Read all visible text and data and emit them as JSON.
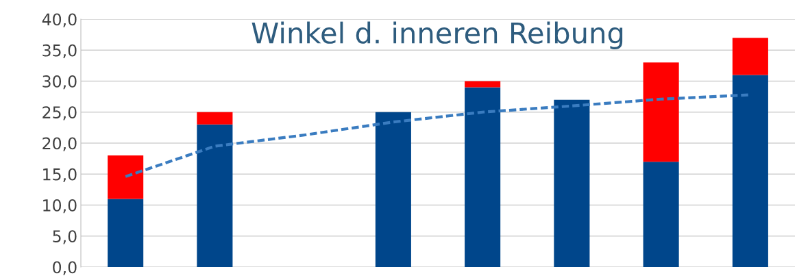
{
  "chart_data": {
    "type": "bar",
    "title": "Winkel d. inneren Reibung",
    "stacked": true,
    "categories": [
      null,
      null,
      null,
      null,
      null,
      null,
      null,
      null
    ],
    "series": [
      {
        "color": "#00468b",
        "values": [
          11,
          23,
          null,
          25,
          29,
          27,
          17,
          31
        ]
      },
      {
        "color": "#ff0000",
        "values": [
          7,
          2,
          null,
          0,
          1,
          0,
          16,
          6
        ]
      },
      {
        "type": "line",
        "color": "#3a7cc0",
        "line_style": "dashed",
        "values": [
          14.6,
          19.5,
          21.3,
          23.4,
          25.0,
          26.0,
          27.1,
          27.8
        ]
      }
    ],
    "ylim": [
      0,
      40
    ],
    "yticks": [
      {
        "value": 0,
        "label": "0,0"
      },
      {
        "value": 5,
        "label": "5,0"
      },
      {
        "value": 10,
        "label": "10,0"
      },
      {
        "value": 15,
        "label": "15,0"
      },
      {
        "value": 20,
        "label": "20,0"
      },
      {
        "value": 25,
        "label": "25,0"
      },
      {
        "value": 30,
        "label": "30,0"
      },
      {
        "value": 35,
        "label": "35,0"
      },
      {
        "value": 40,
        "label": "40,0"
      }
    ],
    "grid": "y",
    "tick_labels": "y"
  }
}
